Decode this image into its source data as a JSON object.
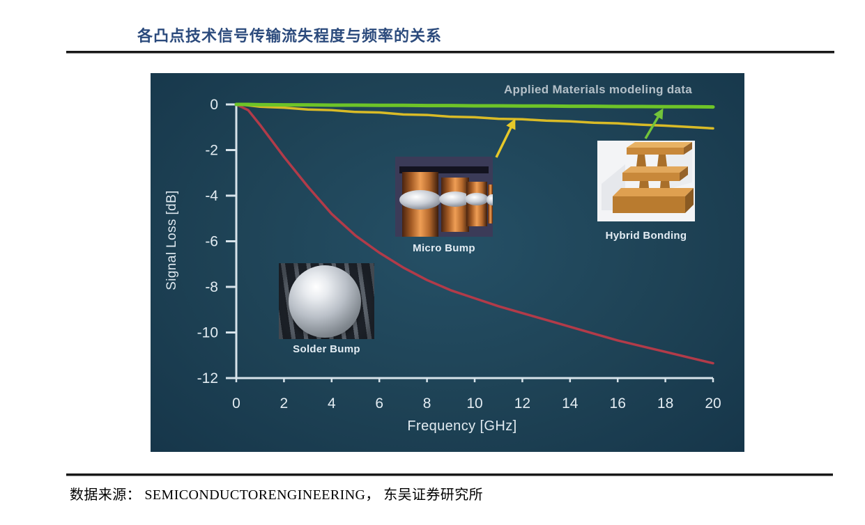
{
  "page": {
    "title": "各凸点技术信号传输流失程度与频率的关系",
    "source": "数据来源： SEMICONDUCTORENGINEERING， 东吴证券研究所"
  },
  "chart_data": {
    "type": "line",
    "title": "各凸点技术信号传输流失程度与频率的关系",
    "xlabel": "Frequency [GHz]",
    "ylabel": "Signal Loss [dB]",
    "xlim": [
      0,
      20
    ],
    "ylim": [
      -12,
      0
    ],
    "xticks": [
      0,
      2,
      4,
      6,
      8,
      10,
      12,
      14,
      16,
      18,
      20
    ],
    "yticks": [
      0,
      -2,
      -4,
      -6,
      -8,
      -10,
      -12
    ],
    "grid": false,
    "legend_position": "none",
    "panel_background": "#1e4255",
    "axis_color": "#d7e3ea",
    "annotation": "Applied Materials modeling data",
    "x": [
      0,
      0.5,
      1,
      2,
      3,
      4,
      5,
      6,
      7,
      8,
      9,
      10,
      11,
      12,
      13,
      14,
      15,
      16,
      17,
      18,
      19,
      20
    ],
    "series": [
      {
        "name": "Solder Bump",
        "color": "#b23b49",
        "width": 3.5,
        "values": [
          0,
          -0.25,
          -0.9,
          -2.3,
          -3.6,
          -4.8,
          -5.75,
          -6.5,
          -7.15,
          -7.7,
          -8.15,
          -8.5,
          -8.85,
          -9.15,
          -9.45,
          -9.75,
          -10.05,
          -10.35,
          -10.6,
          -10.85,
          -11.1,
          -11.35
        ]
      },
      {
        "name": "Micro Bump",
        "color": "#d9bb27",
        "width": 3.5,
        "values": [
          0,
          -0.04,
          -0.1,
          -0.14,
          -0.22,
          -0.25,
          -0.33,
          -0.35,
          -0.44,
          -0.46,
          -0.54,
          -0.56,
          -0.63,
          -0.65,
          -0.71,
          -0.74,
          -0.8,
          -0.83,
          -0.89,
          -0.93,
          -0.99,
          -1.05
        ]
      },
      {
        "name": "Hybrid Bonding",
        "color": "#6ec428",
        "width": 5,
        "values": [
          0,
          0,
          -0.01,
          -0.02,
          -0.02,
          -0.03,
          -0.03,
          -0.04,
          -0.04,
          -0.05,
          -0.05,
          -0.06,
          -0.06,
          -0.07,
          -0.07,
          -0.08,
          -0.08,
          -0.09,
          -0.09,
          -0.1,
          -0.1,
          -0.11
        ]
      }
    ],
    "images": [
      {
        "name": "micro-bump",
        "label": "Micro Bump"
      },
      {
        "name": "solder-bump",
        "label": "Solder Bump"
      },
      {
        "name": "hybrid-bonding",
        "label": "Hybrid Bonding"
      }
    ]
  }
}
